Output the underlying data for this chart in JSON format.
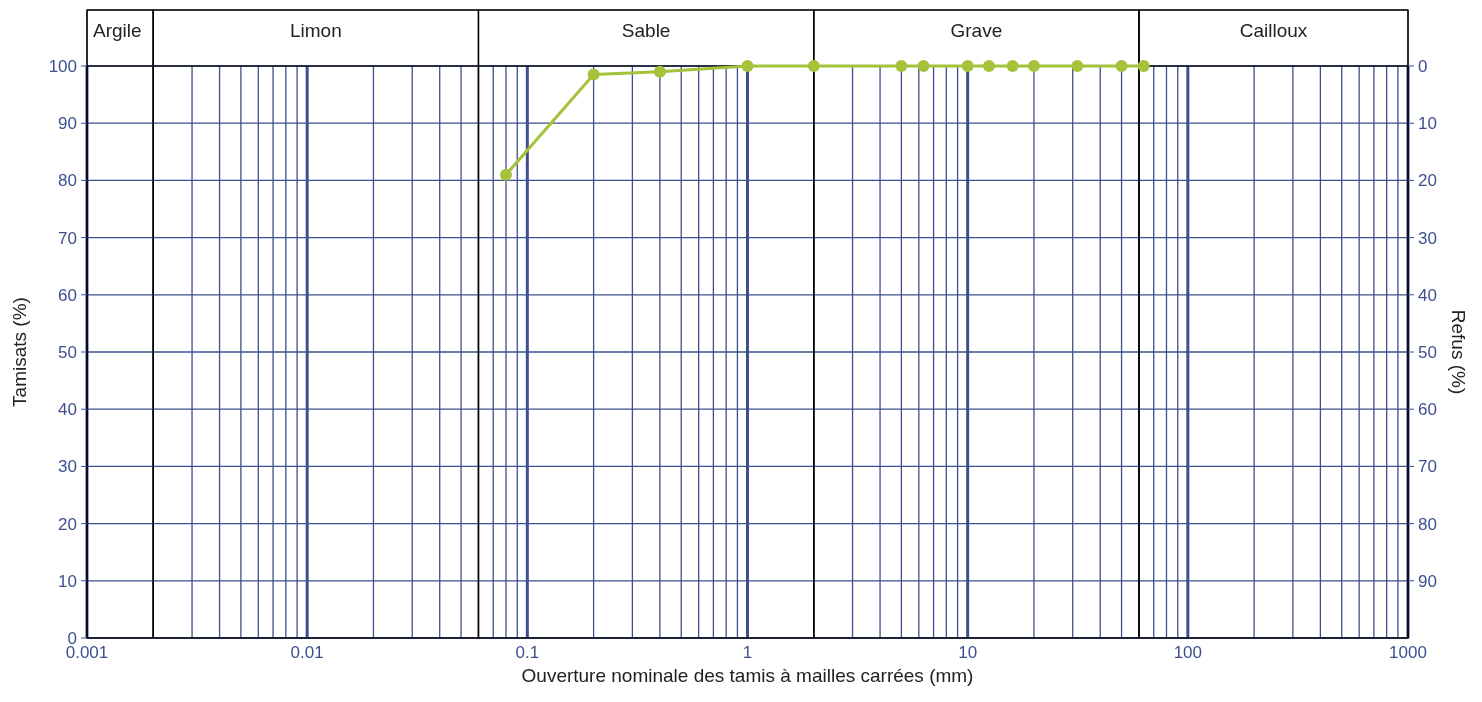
{
  "chart_data": {
    "type": "line",
    "xlabel": "Ouverture nominale des tamis à mailles carrées (mm)",
    "ylabel": "Tamisats (%)",
    "y2label": "Refus (%)",
    "x": [
      0.08,
      0.2,
      0.4,
      1,
      2,
      5,
      6.3,
      10,
      12.5,
      16,
      20,
      31.5,
      50,
      63
    ],
    "series": [
      {
        "color": "#a4c23a",
        "values": [
          81,
          98.5,
          99,
          100,
          100,
          100,
          100,
          100,
          100,
          100,
          100,
          100,
          100,
          100
        ]
      }
    ],
    "log": "x",
    "xlim": [
      0.001,
      1000
    ],
    "xticks": [
      0.001,
      {
        "value": 0.002,
        "label": null
      },
      {
        "value": 0.003,
        "label": null
      },
      {
        "value": 0.004,
        "label": null
      },
      {
        "value": 0.005,
        "label": null
      },
      {
        "value": 0.006,
        "label": null
      },
      {
        "value": 0.007,
        "label": null
      },
      {
        "value": 0.008,
        "label": null
      },
      {
        "value": 0.009,
        "label": null
      },
      0.01,
      {
        "value": 0.02,
        "label": null
      },
      {
        "value": 0.03,
        "label": null
      },
      {
        "value": 0.04,
        "label": null
      },
      {
        "value": 0.05,
        "label": null
      },
      {
        "value": 0.06,
        "label": null
      },
      {
        "value": 0.07,
        "label": null
      },
      {
        "value": 0.08,
        "label": null
      },
      {
        "value": 0.09,
        "label": null
      },
      0.1,
      {
        "value": 0.2,
        "label": null
      },
      {
        "value": 0.3,
        "label": null
      },
      {
        "value": 0.4,
        "label": null
      },
      {
        "value": 0.5,
        "label": null
      },
      {
        "value": 0.6,
        "label": null
      },
      {
        "value": 0.7,
        "label": null
      },
      {
        "value": 0.8,
        "label": null
      },
      {
        "value": 0.9,
        "label": null
      },
      1,
      {
        "value": 2,
        "label": null
      },
      {
        "value": 3,
        "label": null
      },
      {
        "value": 4,
        "label": null
      },
      {
        "value": 5,
        "label": null
      },
      {
        "value": 6,
        "label": null
      },
      {
        "value": 7,
        "label": null
      },
      {
        "value": 8,
        "label": null
      },
      {
        "value": 9,
        "label": null
      },
      10,
      {
        "value": 20,
        "label": null
      },
      {
        "value": 30,
        "label": null
      },
      {
        "value": 40,
        "label": null
      },
      {
        "value": 50,
        "label": null
      },
      {
        "value": 60,
        "label": null
      },
      {
        "value": 70,
        "label": null
      },
      {
        "value": 80,
        "label": null
      },
      {
        "value": 90,
        "label": null
      },
      100,
      {
        "value": 200,
        "label": null
      },
      {
        "value": 300,
        "label": null
      },
      {
        "value": 400,
        "label": null
      },
      {
        "value": 500,
        "label": null
      },
      {
        "value": 600,
        "label": null
      },
      {
        "value": 700,
        "label": null
      },
      {
        "value": 800,
        "label": null
      },
      {
        "value": 900,
        "label": null
      },
      1000
    ],
    "ylim": [
      0,
      100
    ],
    "yticks": [
      0,
      10,
      20,
      30,
      40,
      50,
      60,
      70,
      80,
      90,
      100
    ],
    "y2lim": [
      100,
      0
    ],
    "y2ticks": [
      0,
      10,
      20,
      30,
      40,
      50,
      60,
      70,
      80,
      90
    ],
    "bands": [
      {
        "axis": "x",
        "from": 0.001,
        "to": 0.002,
        "label": "Argile",
        "color": "#ffffff"
      },
      {
        "axis": "x",
        "from": 0.002,
        "to": 0.06,
        "label": "Limon",
        "color": "#ffffff"
      },
      {
        "axis": "x",
        "from": 0.06,
        "to": 2,
        "label": "Sable",
        "color": "#ffffff"
      },
      {
        "axis": "x",
        "from": 2,
        "to": 60,
        "label": "Grave",
        "color": "#ffffff"
      },
      {
        "axis": "x",
        "from": 60,
        "to": 1000,
        "label": "Cailloux",
        "color": "#ffffff"
      }
    ],
    "grid": true,
    "marker": "circle",
    "line_style": "solid"
  }
}
